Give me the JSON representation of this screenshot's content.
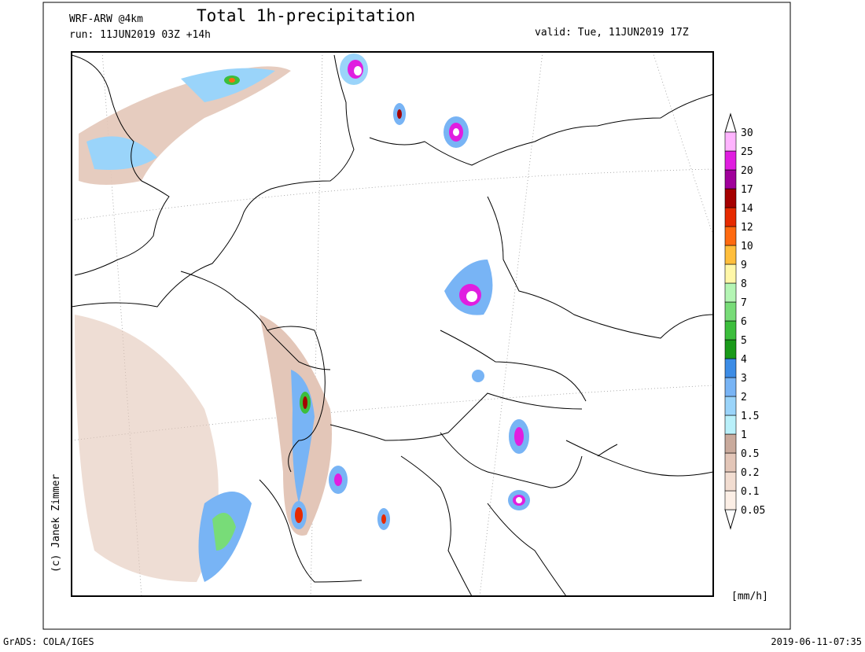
{
  "header": {
    "model": "WRF-ARW @4km",
    "title": "Total 1h-precipitation",
    "run": "run: 11JUN2019 03Z +14h",
    "valid": "valid: Tue, 11JUN2019 17Z"
  },
  "legend": {
    "levels": [
      0.05,
      0.1,
      0.2,
      0.5,
      1,
      1.5,
      2,
      3,
      4,
      5,
      6,
      7,
      8,
      9,
      10,
      12,
      14,
      17,
      20,
      25,
      30
    ],
    "colors": [
      "#fcefe6",
      "#f2ddd1",
      "#e3c6b8",
      "#c9aa9c",
      "#b9f0fa",
      "#9ad4fa",
      "#78b4f5",
      "#3c8ce6",
      "#1a9a1a",
      "#3cbe3c",
      "#78dc78",
      "#b4f5b4",
      "#fff7a8",
      "#ffbe3c",
      "#ff6a10",
      "#e62a00",
      "#a50000",
      "#a0009b",
      "#e01ee0",
      "#ffb4ff"
    ],
    "unit": "[mm/h]"
  },
  "credit": "(c) Janek Zimmer",
  "footer": {
    "left": "GrADS: COLA/IGES",
    "right": "2019-06-11-07:35"
  }
}
